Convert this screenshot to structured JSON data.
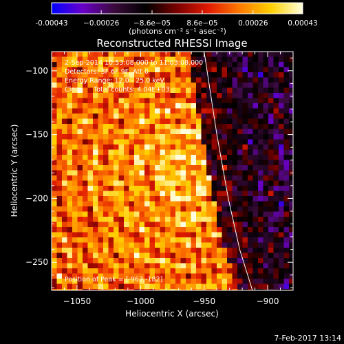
{
  "chart_data": {
    "type": "heatmap",
    "title": "Reconstructed RHESSI Image",
    "xlabel": "Heliocentric X (arcsec)",
    "ylabel": "Heliocentric Y (arcsec)",
    "xlim": [
      -1070,
      -880
    ],
    "ylim": [
      -272,
      -85
    ],
    "x_ticks": [
      -1050,
      -1000,
      -950,
      -900
    ],
    "x_tick_labels": [
      "−1050",
      "−1000",
      "−950",
      "−900"
    ],
    "y_ticks": [
      -100,
      -150,
      -200,
      -250
    ],
    "y_tick_labels": [
      "−100",
      "−150",
      "−200",
      "−250"
    ],
    "colorbar": {
      "range": [
        -0.00043,
        0.00043
      ],
      "ticks": [
        -0.00043,
        -0.00026,
        -8.6e-05,
        8.6e-05,
        0.00026,
        0.00043
      ],
      "tick_labels": [
        "-0.00043",
        "−0.00026",
        "−8.6e−05",
        "8.6e−05",
        "0.00026",
        "0.00043"
      ],
      "units_label": "(photons cm⁻² s⁻¹ asec⁻²)",
      "colors": [
        "#0000ff",
        "#6a00c8",
        "#3a0a3a",
        "#000000",
        "#7a0000",
        "#e11b00",
        "#ff7a00",
        "#ffd000",
        "#ffffe0"
      ]
    },
    "annotations": [
      "2-Sep-2014 10:53:08.000 to 11:03:08.000",
      "Detectors: 3F 6F 9F, Att 0",
      "Energy Range: 12.0 - 25.0 keV",
      "Clean     Total counts: 4.04E+03"
    ],
    "peak_label": "Position of Peak = [-967,-182]",
    "peak": {
      "x": -967,
      "y": -182
    },
    "limb": [
      [
        -950,
        -85
      ],
      [
        -940,
        -150
      ],
      [
        -931,
        -200
      ],
      [
        -922,
        -240
      ],
      [
        -912,
        -272
      ]
    ],
    "grid": false,
    "legend": "none"
  },
  "footer": {
    "timestamp": "7-Feb-2017 13:14"
  }
}
